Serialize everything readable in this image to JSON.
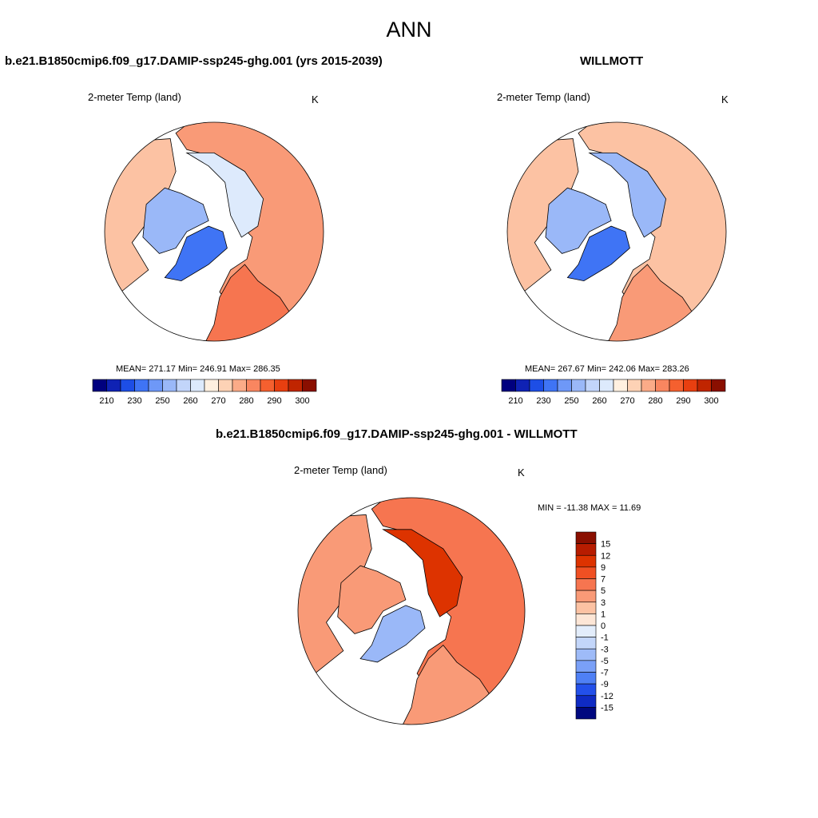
{
  "page": {
    "title": "ANN"
  },
  "panels": [
    {
      "id": "model",
      "title": "b.e21.B1850cmip6.f09_g17.DAMIP-ssp245-ghg.001 (yrs 2015-2039)",
      "variable": "2-meter Temp (land)",
      "units": "K",
      "stats": "MEAN= 271.17  Min= 246.91  Max= 286.35",
      "mean": 271.17,
      "min": 246.91,
      "max": 286.35
    },
    {
      "id": "obs",
      "title": "WILLMOTT",
      "variable": "2-meter Temp (land)",
      "units": "K",
      "stats": "MEAN= 267.67  Min= 242.06  Max= 283.26",
      "mean": 267.67,
      "min": 242.06,
      "max": 283.26
    },
    {
      "id": "diff",
      "title": "b.e21.B1850cmip6.f09_g17.DAMIP-ssp245-ghg.001 - WILLMOTT",
      "variable": "2-meter Temp (land)",
      "units": "K",
      "stats": "MIN = -11.38 MAX =  11.69",
      "min": -11.38,
      "max": 11.69
    }
  ],
  "colorbars": {
    "absolute": {
      "colors": [
        "#00007f",
        "#0f22b4",
        "#1d4ee6",
        "#3f74f5",
        "#6e98f7",
        "#9ab8f8",
        "#c2d5fa",
        "#ddeafc",
        "#fff0e0",
        "#fdd2b5",
        "#fbab88",
        "#f98660",
        "#f5602f",
        "#e83f10",
        "#c02500",
        "#8a0f00"
      ],
      "tick_labels": [
        "210",
        "230",
        "250",
        "260",
        "270",
        "280",
        "290",
        "300"
      ]
    },
    "difference": {
      "colors": [
        "#8a0f00",
        "#b71c00",
        "#dd3300",
        "#f05023",
        "#f67550",
        "#f99a77",
        "#fcc2a3",
        "#fde6d6",
        "#e3edfb",
        "#c3d6fa",
        "#9ebbf8",
        "#7aa0f7",
        "#4f80f5",
        "#2350ea",
        "#0f2bc4",
        "#00087f"
      ],
      "tick_labels": [
        "15",
        "12",
        "9",
        "7",
        "5",
        "3",
        "1",
        "0",
        "-1",
        "-3",
        "-5",
        "-7",
        "-9",
        "-12",
        "-15"
      ]
    }
  },
  "colors": {
    "warm_light": "#fcc2a3",
    "warm_mid": "#f99a77",
    "warm_strong": "#f67550",
    "warm_dark": "#dd3300",
    "cold_light": "#ddeafc",
    "cold_mid": "#9ab8f8",
    "cold_strong": "#3f74f5"
  }
}
